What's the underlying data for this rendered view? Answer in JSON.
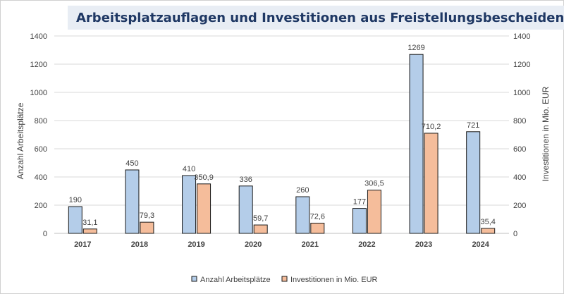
{
  "chart_data": {
    "type": "bar",
    "title": "Arbeitsplatzauflagen  und Investitionen aus Freistellungsbescheiden",
    "categories": [
      "2017",
      "2018",
      "2019",
      "2020",
      "2021",
      "2022",
      "2023",
      "2024"
    ],
    "series": [
      {
        "name": "Anzahl Arbeitsplätze",
        "axis": "left",
        "color": "#b4cde9",
        "values": [
          190,
          450,
          410,
          336,
          260,
          177,
          1269,
          721
        ],
        "labels": [
          "190",
          "450",
          "410",
          "336",
          "260",
          "177",
          "1269",
          "721"
        ]
      },
      {
        "name": "Investitionen in Mio. EUR",
        "axis": "right",
        "color": "#f5bd9b",
        "values": [
          31.1,
          79.3,
          350.9,
          59.7,
          72.6,
          306.5,
          710.2,
          35.4
        ],
        "labels": [
          "31,1",
          "79,3",
          "350,9",
          "59,7",
          "72,6",
          "306,5",
          "710,2",
          "35,4"
        ]
      }
    ],
    "ylabel_left": "Anzahl  Arbeitsplätze",
    "ylabel_right": "Investitionen in Mio. EUR",
    "ylim_left": [
      0,
      1400
    ],
    "ylim_right": [
      0,
      1400
    ],
    "yticks": [
      "0",
      "200",
      "400",
      "600",
      "800",
      "1000",
      "1200",
      "1400"
    ],
    "grid": true,
    "legend_position": "bottom-center"
  }
}
